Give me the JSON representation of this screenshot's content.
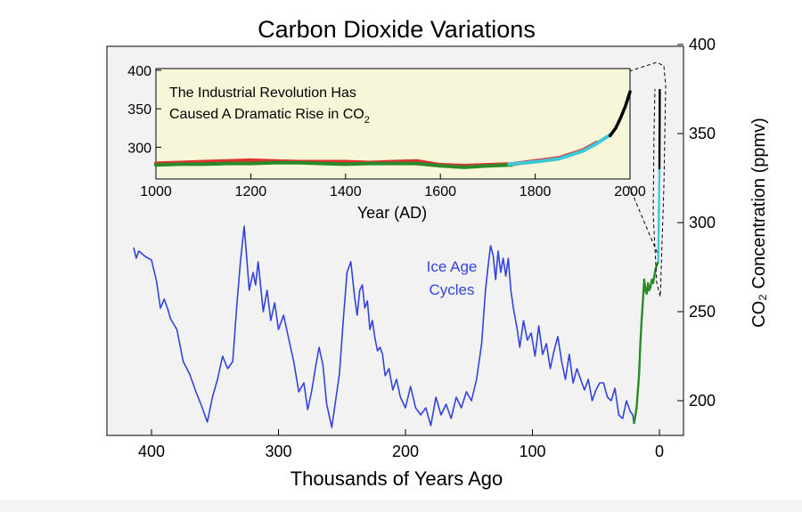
{
  "chart_data": [
    {
      "type": "line",
      "title": "Carbon Dioxide Variations",
      "xlabel": "Thousands of Years Ago",
      "ylabel": "CO₂ Concentration (ppmv)",
      "x_ticks": [
        "400",
        "300",
        "200",
        "100",
        "0"
      ],
      "y_ticks": [
        "200",
        "250",
        "300",
        "350",
        "400"
      ],
      "xlim": [
        425,
        -20
      ],
      "ylim": [
        180,
        400
      ],
      "annotation": "Ice Age Cycles",
      "series": [
        {
          "color": "#3344dd",
          "x": [
            414,
            412,
            410,
            405,
            400,
            396,
            393,
            390,
            387,
            385,
            380,
            375,
            370,
            365,
            360,
            356,
            352,
            348,
            344,
            340,
            336,
            333,
            330,
            327,
            325,
            323,
            320,
            318,
            316,
            312,
            309,
            306,
            303,
            300,
            296,
            292,
            288,
            284,
            280,
            277,
            274,
            271,
            268,
            265,
            262,
            258,
            255,
            252,
            249,
            246,
            243,
            240,
            238,
            236,
            234,
            232,
            230,
            228,
            226,
            224,
            222,
            220,
            218,
            216,
            213,
            210,
            207,
            204,
            200,
            196,
            192,
            188,
            184,
            180,
            176,
            172,
            168,
            164,
            160,
            156,
            152,
            148,
            144,
            140,
            137,
            135,
            133,
            131,
            129,
            127,
            125,
            123,
            121,
            119,
            117,
            115,
            112,
            110,
            107,
            104,
            101,
            98,
            95,
            92,
            89,
            86,
            83,
            80,
            77,
            74,
            71,
            68,
            65,
            62,
            59,
            56,
            53,
            50,
            47,
            44,
            41,
            38,
            35,
            32,
            29,
            26,
            23,
            21,
            20
          ],
          "y": [
            286,
            280,
            284,
            281,
            279,
            267,
            252,
            257,
            251,
            246,
            240,
            222,
            215,
            205,
            196,
            188,
            202,
            212,
            225,
            218,
            222,
            252,
            278,
            298,
            280,
            262,
            272,
            265,
            278,
            250,
            262,
            245,
            255,
            240,
            248,
            235,
            222,
            205,
            210,
            195,
            205,
            218,
            230,
            220,
            198,
            185,
            200,
            215,
            245,
            272,
            278,
            258,
            248,
            262,
            265,
            252,
            256,
            240,
            245,
            235,
            228,
            230,
            226,
            214,
            218,
            206,
            212,
            202,
            196,
            208,
            196,
            192,
            196,
            186,
            202,
            192,
            198,
            190,
            202,
            196,
            205,
            200,
            212,
            232,
            262,
            275,
            287,
            282,
            268,
            284,
            272,
            280,
            270,
            280,
            262,
            252,
            240,
            230,
            245,
            234,
            238,
            225,
            242,
            226,
            232,
            218,
            228,
            236,
            222,
            212,
            226,
            210,
            218,
            212,
            206,
            212,
            200,
            206,
            210,
            210,
            202,
            200,
            207,
            192,
            190,
            200,
            194,
            192,
            187
          ]
        },
        {
          "color": "#2a8a2a",
          "x": [
            20,
            18,
            16,
            15,
            14,
            13,
            12,
            11,
            10,
            9,
            8,
            7,
            6,
            5,
            4,
            3,
            2,
            1
          ],
          "y": [
            187,
            196,
            215,
            232,
            245,
            256,
            268,
            262,
            260,
            266,
            262,
            264,
            268,
            266,
            270,
            274,
            276,
            278
          ]
        },
        {
          "color": "#40c8d8",
          "x": [
            1,
            0.5,
            0
          ],
          "y": [
            278,
            300,
            330
          ]
        },
        {
          "color": "#000000",
          "x": [
            0,
            -0.3
          ],
          "y": [
            330,
            375
          ]
        }
      ]
    },
    {
      "type": "line",
      "title": "The Industrial Revolution Has Caused A Dramatic Rise in CO₂",
      "xlabel": "Year (AD)",
      "ylabel": "",
      "x_ticks": [
        "1000",
        "1200",
        "1400",
        "1600",
        "1800",
        "2000"
      ],
      "y_ticks": [
        "300",
        "350",
        "400"
      ],
      "xlim": [
        1000,
        2000
      ],
      "ylim": [
        260,
        400
      ],
      "series": [
        {
          "color": "#e03030",
          "x": [
            1000,
            1050,
            1100,
            1150,
            1200,
            1250,
            1300,
            1350,
            1400,
            1450,
            1500,
            1550,
            1600,
            1650,
            1700,
            1750,
            1800,
            1850,
            1900,
            1930
          ],
          "y": [
            279,
            280,
            281,
            282,
            283,
            282,
            281,
            281,
            281,
            280,
            281,
            282,
            277,
            276,
            277,
            278,
            282,
            286,
            296,
            306
          ]
        },
        {
          "color": "#2a8a2a",
          "x": [
            1000,
            1050,
            1100,
            1150,
            1200,
            1250,
            1300,
            1350,
            1400,
            1450,
            1500,
            1550,
            1600,
            1650,
            1700,
            1750
          ],
          "y": [
            277,
            278,
            278,
            279,
            279,
            280,
            280,
            279,
            278,
            279,
            279,
            279,
            276,
            274,
            276,
            277
          ]
        },
        {
          "color": "#40c8d8",
          "x": [
            1745,
            1800,
            1850,
            1900,
            1930,
            1960
          ],
          "y": [
            278,
            281,
            285,
            295,
            305,
            317
          ]
        },
        {
          "color": "#000000",
          "x": [
            1958,
            1970,
            1980,
            1990,
            2000
          ],
          "y": [
            315,
            325,
            338,
            353,
            372
          ]
        }
      ]
    }
  ]
}
